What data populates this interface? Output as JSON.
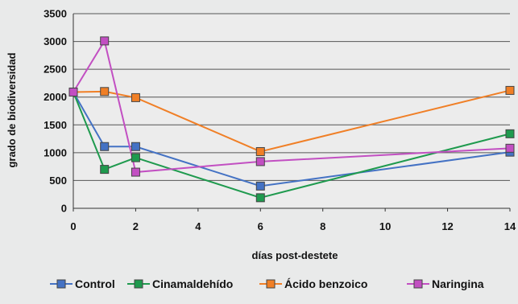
{
  "chart_data": {
    "type": "line",
    "title": "",
    "xlabel": "días post-destete",
    "ylabel": "grado de biodiversidad",
    "x": [
      0,
      1,
      2,
      6,
      14
    ],
    "xticks": [
      0,
      2,
      4,
      6,
      8,
      10,
      12,
      14
    ],
    "yticks": [
      0,
      500,
      1000,
      1500,
      2000,
      2500,
      3000,
      3500
    ],
    "xlim": [
      0,
      14
    ],
    "ylim": [
      0,
      3500
    ],
    "grid": "horizontal",
    "legend_position": "bottom",
    "series": [
      {
        "name": "Control",
        "color": "#4472c4",
        "values": [
          2090,
          1110,
          1110,
          400,
          1010
        ]
      },
      {
        "name": "Cinamaldehído",
        "color": "#1f9a4e",
        "values": [
          2090,
          700,
          910,
          190,
          1340
        ]
      },
      {
        "name": "Ácido benzoico",
        "color": "#f07f26",
        "values": [
          2090,
          2100,
          1990,
          1020,
          2120
        ]
      },
      {
        "name": "Naringina",
        "color": "#c24fc2",
        "values": [
          2090,
          3010,
          650,
          840,
          1080
        ]
      }
    ]
  }
}
